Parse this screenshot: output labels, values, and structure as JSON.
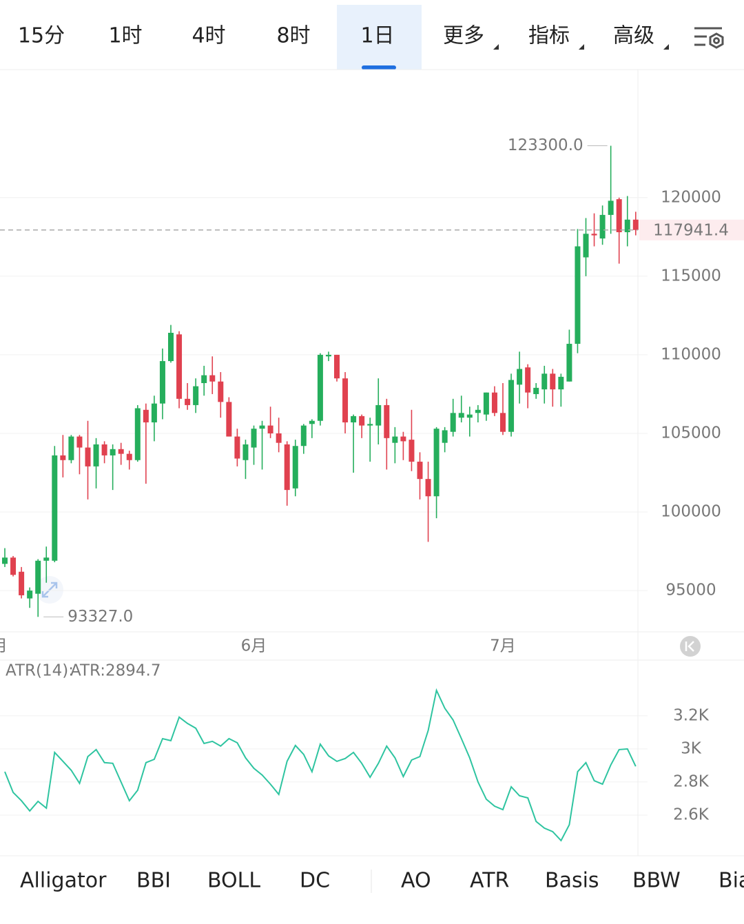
{
  "tabs": {
    "items": [
      "15分",
      "1时",
      "4时",
      "8时",
      "1日",
      "更多",
      "指标",
      "高级"
    ],
    "active": 4
  },
  "indicator_tabs": {
    "items": [
      "Alligator",
      "BBI",
      "BOLL",
      "DC",
      "AO",
      "ATR",
      "Basis",
      "BBW",
      "Bia"
    ],
    "active": 5
  },
  "chart_data": [
    {
      "type": "candlestick",
      "up_color": "#25ae5c",
      "down_color": "#e0414f",
      "categories": [
        "月",
        null,
        null,
        null,
        null,
        null,
        null,
        null,
        null,
        null,
        null,
        null,
        null,
        null,
        null,
        null,
        null,
        null,
        null,
        null,
        null,
        null,
        null,
        null,
        null,
        null,
        null,
        null,
        null,
        null,
        "6月",
        null,
        null,
        null,
        null,
        null,
        null,
        null,
        null,
        null,
        null,
        null,
        null,
        null,
        null,
        null,
        null,
        null,
        null,
        null,
        null,
        null,
        null,
        null,
        null,
        null,
        null,
        null,
        null,
        null,
        "7月",
        null,
        null,
        null,
        null,
        null,
        null,
        null,
        null,
        null,
        null,
        null,
        null,
        null,
        null,
        null,
        null
      ],
      "open": [
        96700,
        97100,
        96200,
        94500,
        94800,
        96900,
        96900,
        103600,
        103300,
        104800,
        104100,
        102900,
        104300,
        103600,
        104000,
        103700,
        103300,
        106500,
        105700,
        106900,
        109600,
        111300,
        107200,
        106800,
        108200,
        108700,
        108300,
        107000,
        104800,
        103300,
        104100,
        105300,
        105500,
        105000,
        104300,
        101500,
        104200,
        105600,
        105800,
        109900,
        110000,
        108500,
        105700,
        106100,
        105500,
        105500,
        106800,
        104400,
        104800,
        104600,
        103200,
        102100,
        101000,
        104400,
        105100,
        106000,
        106000,
        106300,
        106200,
        107600,
        106300,
        105100,
        108100,
        109200,
        107500,
        107800,
        108800,
        107800,
        108300,
        110700,
        116200,
        117700,
        117400,
        118900,
        119900,
        117800,
        118600
      ],
      "high": [
        97700,
        97200,
        96500,
        95200,
        97000,
        97800,
        104200,
        104900,
        104900,
        104900,
        105800,
        104700,
        104500,
        104300,
        104400,
        103900,
        106800,
        106900,
        107400,
        110400,
        111900,
        111500,
        108200,
        108500,
        109300,
        109900,
        108900,
        107300,
        105300,
        104600,
        105500,
        105800,
        106700,
        106000,
        104500,
        104600,
        105600,
        105900,
        110100,
        110200,
        110000,
        108900,
        106200,
        106200,
        106000,
        108500,
        107200,
        105400,
        105100,
        106500,
        103800,
        103200,
        105400,
        105400,
        107200,
        107400,
        106700,
        106800,
        107600,
        108000,
        108200,
        108800,
        110200,
        109400,
        108200,
        109300,
        109100,
        108800,
        111600,
        118000,
        118700,
        119000,
        119500,
        123300,
        120000,
        120100,
        119100
      ],
      "low": [
        96500,
        95900,
        94500,
        93900,
        93327,
        95500,
        96800,
        102200,
        103100,
        102400,
        100800,
        101500,
        103100,
        101400,
        103000,
        102700,
        103200,
        101800,
        104500,
        105900,
        109500,
        106600,
        106500,
        106300,
        107400,
        107500,
        106000,
        104800,
        102900,
        102100,
        103000,
        102700,
        104700,
        103800,
        100400,
        101000,
        103700,
        104700,
        105500,
        109600,
        108300,
        105000,
        102500,
        104700,
        103200,
        104300,
        102700,
        103100,
        103300,
        102600,
        100800,
        98100,
        99600,
        103800,
        104800,
        105700,
        104800,
        105700,
        105800,
        106100,
        104900,
        104800,
        106900,
        106600,
        107200,
        106900,
        106700,
        106700,
        108300,
        110100,
        115000,
        116900,
        117000,
        117700,
        115800,
        116900,
        117600
      ],
      "close": [
        97100,
        96000,
        94700,
        95000,
        96900,
        97100,
        103600,
        103300,
        104800,
        104100,
        102900,
        104300,
        103600,
        104000,
        103700,
        103300,
        106600,
        105700,
        106900,
        109600,
        111400,
        107200,
        106800,
        108000,
        108700,
        108300,
        107000,
        104800,
        103400,
        104300,
        105300,
        105500,
        105000,
        104400,
        101400,
        104200,
        105500,
        105800,
        110000,
        110000,
        108500,
        105700,
        106100,
        105500,
        105600,
        106800,
        104700,
        104800,
        104500,
        103200,
        102100,
        101000,
        105300,
        105200,
        106300,
        106300,
        106200,
        106500,
        107600,
        106300,
        105100,
        108400,
        109100,
        107600,
        107900,
        108800,
        107800,
        108600,
        110700,
        116900,
        117700,
        117600,
        118900,
        119800,
        117800,
        118600,
        117941.4
      ],
      "ylim": [
        92375,
        128145
      ],
      "yticks": [
        95000,
        100000,
        105000,
        110000,
        115000,
        120000
      ],
      "grid": true,
      "last_price": {
        "value": 117941.4,
        "label": "117941.4"
      },
      "annotations": [
        {
          "label": "123300.0",
          "value": 123300,
          "index": 73,
          "side": "left"
        },
        {
          "label": "93327.0",
          "value": 93327,
          "index": 4,
          "side": "right"
        }
      ]
    },
    {
      "type": "line",
      "title": "ATR(14):",
      "last_label": "ATR:2894.7",
      "series": [
        {
          "name": "ATR",
          "color": "#2ec4a0",
          "values": [
            2862,
            2737,
            2687,
            2625,
            2683,
            2642,
            2979,
            2925,
            2871,
            2792,
            2954,
            2996,
            2917,
            2913,
            2800,
            2687,
            2750,
            2917,
            2937,
            3062,
            3050,
            3192,
            3154,
            3125,
            3033,
            3046,
            3017,
            3062,
            3037,
            2946,
            2883,
            2842,
            2787,
            2725,
            2925,
            3021,
            2967,
            2862,
            3029,
            2958,
            2925,
            2942,
            2979,
            2913,
            2829,
            2913,
            3017,
            2946,
            2833,
            2933,
            2954,
            3112,
            3354,
            3246,
            3175,
            3062,
            2946,
            2800,
            2696,
            2654,
            2633,
            2771,
            2717,
            2704,
            2562,
            2521,
            2500,
            2446,
            2542,
            2862,
            2917,
            2808,
            2787,
            2904,
            2996,
            3000,
            2894.7
          ]
        }
      ],
      "ylim": [
        2354,
        3537
      ],
      "yticks": [
        {
          "value": 2600,
          "label": "2.6K"
        },
        {
          "value": 2800,
          "label": "2.8K"
        },
        {
          "value": 3000,
          "label": "3K"
        },
        {
          "value": 3200,
          "label": "3.2K"
        }
      ],
      "grid": true
    }
  ]
}
